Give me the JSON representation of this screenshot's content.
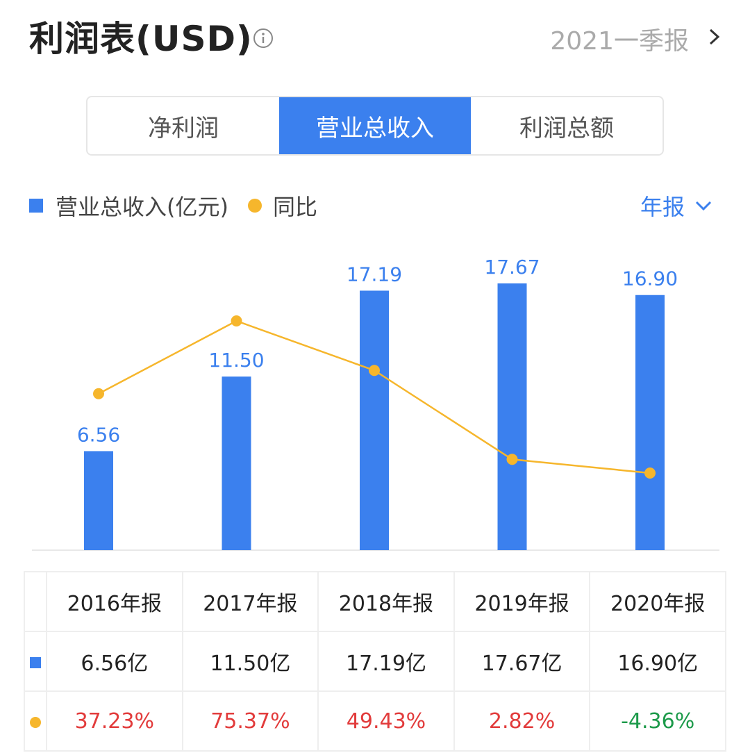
{
  "header": {
    "title": "利润表(USD)",
    "period_label": "2021一季报"
  },
  "tabs": [
    {
      "label": "净利润",
      "active": false
    },
    {
      "label": "营业总收入",
      "active": true
    },
    {
      "label": "利润总额",
      "active": false
    }
  ],
  "legend": {
    "bar_label": "营业总收入(亿元)",
    "line_label": "同比"
  },
  "period_select": {
    "label": "年报"
  },
  "colors": {
    "bar": "#3b80ee",
    "line": "#f6b62c",
    "up": "#e23b3b",
    "down": "#1c9a4a"
  },
  "chart_data": {
    "type": "bar",
    "categories": [
      "2016年报",
      "2017年报",
      "2018年报",
      "2019年报",
      "2020年报"
    ],
    "series": [
      {
        "name": "营业总收入(亿元)",
        "type": "bar",
        "values": [
          6.56,
          11.5,
          17.19,
          17.67,
          16.9
        ]
      },
      {
        "name": "同比",
        "type": "line",
        "values": [
          37.23,
          75.37,
          49.43,
          2.82,
          -4.36
        ]
      }
    ],
    "bar_labels": [
      "6.56",
      "11.50",
      "17.19",
      "17.67",
      "16.90"
    ],
    "legend_position": "top-left",
    "grid": false
  },
  "table": {
    "headers": [
      "2016年报",
      "2017年报",
      "2018年报",
      "2019年报",
      "2020年报"
    ],
    "values": [
      "6.56亿",
      "11.50亿",
      "17.19亿",
      "17.67亿",
      "16.90亿"
    ],
    "percents": [
      "37.23%",
      "75.37%",
      "49.43%",
      "2.82%",
      "-4.36%"
    ]
  }
}
